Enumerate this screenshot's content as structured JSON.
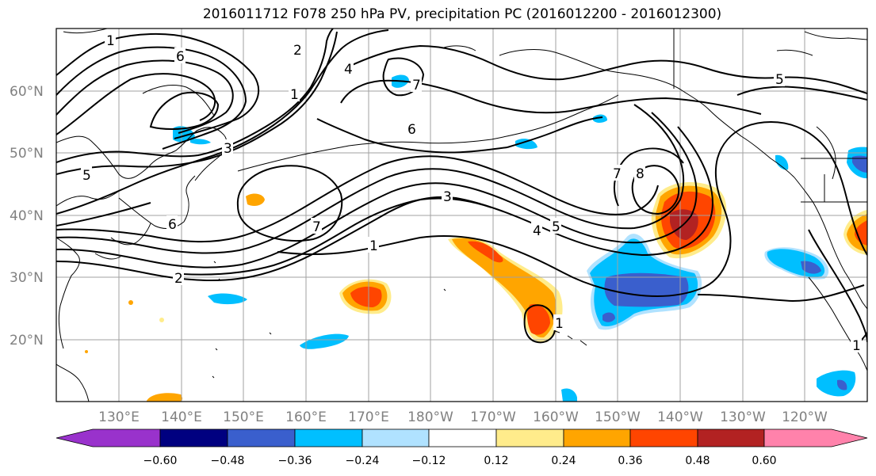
{
  "title": "2016011712 F078 250 hPa PV, precipitation PC (2016012200 - 2016012300)",
  "lat_labels": [
    "60°N",
    "50°N",
    "40°N",
    "30°N",
    "20°N"
  ],
  "lon_labels": [
    "130°E",
    "140°E",
    "150°E",
    "160°E",
    "170°E",
    "180°W",
    "170°W",
    "160°W",
    "150°W",
    "140°W",
    "130°W",
    "120°W"
  ],
  "contour_labels": [
    "1",
    "6",
    "2",
    "4",
    "7",
    "3",
    "5",
    "6",
    "5",
    "1",
    "3",
    "7",
    "5",
    "4",
    "1",
    "7",
    "8",
    "2",
    "6",
    "1",
    "1"
  ],
  "colorbar": {
    "ticks": [
      "−0.60",
      "−0.48",
      "−0.36",
      "−0.24",
      "−0.12",
      "0.12",
      "0.24",
      "0.36",
      "0.48",
      "0.60"
    ],
    "colors": [
      "#9932cc",
      "#000080",
      "#3a5fcd",
      "#00bfff",
      "#b0e2ff",
      "#ffffff",
      "#ffec8b",
      "#ffa500",
      "#ff4500",
      "#b22222",
      "#ff82ab"
    ]
  },
  "colors": {
    "contour": "#000000",
    "grid": "#a0a0a0",
    "coast": "#000000"
  }
}
